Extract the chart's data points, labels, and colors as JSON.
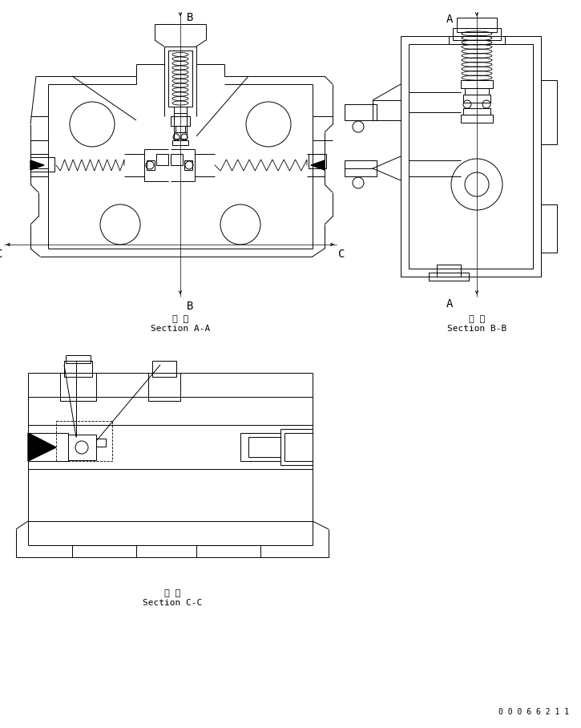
{
  "bg_color": "#ffffff",
  "line_color": "#000000",
  "fig_width": 7.25,
  "fig_height": 9.08,
  "dpi": 100,
  "section_aa_label_kanji": "断 面",
  "section_aa_label": "Section A-A",
  "section_bb_label_kanji": "断 面",
  "section_bb_label": "Section B-B",
  "section_cc_label_kanji": "断 面",
  "section_cc_label": "Section C-C",
  "part_number": "0 0 0 6 6 2 1 1"
}
